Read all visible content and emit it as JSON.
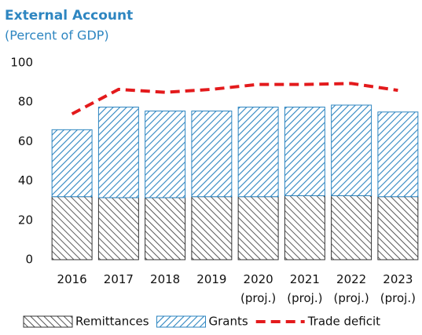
{
  "chart_data": {
    "type": "stacked_bar_line",
    "title": "External Account",
    "subtitle": "(Percent of GDP)",
    "categories": [
      "2016",
      "2017",
      "2018",
      "2019",
      "2020\n(proj.)",
      "2021\n(proj.)",
      "2022\n(proj.)",
      "2023\n(proj.)"
    ],
    "series": [
      {
        "name": "Remittances",
        "color": "#333333",
        "kind": "bar",
        "values": [
          32,
          31.5,
          31.5,
          32,
          32,
          32.5,
          32.5,
          32
        ]
      },
      {
        "name": "Grants",
        "color": "#2e86c1",
        "kind": "bar",
        "values": [
          34,
          46,
          44,
          43.5,
          45.5,
          45,
          46,
          43
        ]
      },
      {
        "name": "Trade deficit",
        "color": "#e31a1c",
        "kind": "line",
        "values": [
          74,
          86.5,
          85,
          86.5,
          89,
          89,
          89.5,
          86
        ]
      }
    ],
    "ylim": [
      0,
      100
    ],
    "yticks": [
      0,
      20,
      40,
      60,
      80,
      100
    ],
    "grid": false
  }
}
